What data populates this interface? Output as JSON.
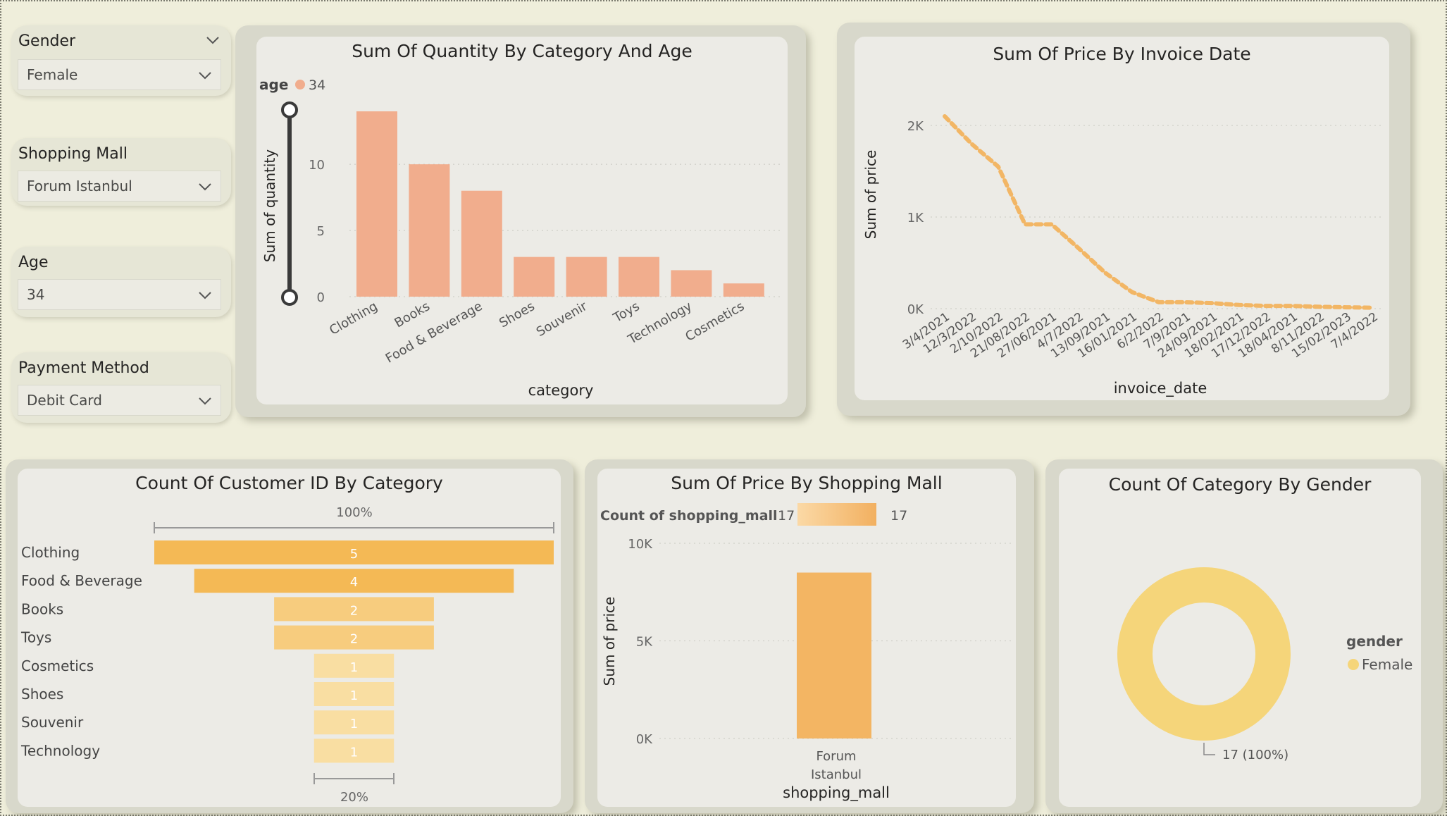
{
  "slicers": [
    {
      "title": "Gender",
      "value": "Female"
    },
    {
      "title": "Shopping Mall",
      "value": "Forum Istanbul"
    },
    {
      "title": "Age",
      "value": "34"
    },
    {
      "title": "Payment Method",
      "value": "Debit Card"
    }
  ],
  "colors": {
    "background": "#efeedb",
    "bar_salmon": "#f1ad8d",
    "line_orange": "#f2b665",
    "funnel_dark": "#f4b955",
    "funnel_mid": "#f7cc7e",
    "funnel_light": "#f9dea2",
    "donut": "#f5d57a"
  },
  "charts": {
    "quantity_by_category": {
      "title": "Sum Of Quantity By Category And Age",
      "legend_title": "age",
      "legend_item": "34",
      "xlabel": "category",
      "ylabel": "Sum of quantity",
      "yticks": [
        "0",
        "5",
        "10"
      ]
    },
    "price_by_date": {
      "title": "Sum Of Price By Invoice Date",
      "xlabel": "invoice_date",
      "ylabel": "Sum of price",
      "yticks": [
        "0K",
        "1K",
        "2K"
      ]
    },
    "customer_by_category": {
      "title": "Count Of Customer ID By Category",
      "top_label": "100%",
      "bottom_label": "20%"
    },
    "price_by_mall": {
      "title": "Sum Of Price By Shopping Mall",
      "legend_title": "Count of shopping_mall",
      "legend_min": "17",
      "legend_max": "17",
      "xlabel": "shopping_mall",
      "ylabel": "Sum of price",
      "yticks": [
        "0K",
        "5K",
        "10K"
      ],
      "category_line1": "Forum",
      "category_line2": "Istanbul"
    },
    "category_by_gender": {
      "title": "Count Of Category By Gender",
      "legend_title": "gender",
      "legend_item": "Female",
      "data_label": "17 (100%)"
    }
  },
  "chart_data": [
    {
      "type": "bar",
      "title": "Sum Of Quantity By Category And Age",
      "xlabel": "category",
      "ylabel": "Sum of quantity",
      "categories": [
        "Clothing",
        "Books",
        "Food & Beverage",
        "Shoes",
        "Souvenir",
        "Toys",
        "Technology",
        "Cosmetics"
      ],
      "series": [
        {
          "name": "34",
          "values": [
            14,
            10,
            8,
            3,
            3,
            3,
            2,
            1
          ]
        }
      ],
      "ylim": [
        0,
        14
      ],
      "legend": "top-left"
    },
    {
      "type": "line",
      "title": "Sum Of Price By Invoice Date",
      "xlabel": "invoice_date",
      "ylabel": "Sum of price",
      "x": [
        "3/4/2021",
        "12/3/2022",
        "2/10/2022",
        "21/08/2022",
        "27/06/2021",
        "4/7/2022",
        "13/09/2021",
        "16/01/2021",
        "6/2/2022",
        "7/9/2021",
        "24/09/2021",
        "18/02/2021",
        "17/12/2022",
        "18/04/2021",
        "8/11/2022",
        "15/02/2023",
        "7/4/2022"
      ],
      "y": [
        2100,
        1800,
        1550,
        920,
        920,
        660,
        390,
        180,
        70,
        70,
        60,
        40,
        30,
        30,
        20,
        15,
        10
      ],
      "ylim": [
        0,
        2100
      ]
    },
    {
      "type": "bar",
      "title": "Count Of Customer ID By Category",
      "categories": [
        "Clothing",
        "Food & Beverage",
        "Books",
        "Toys",
        "Cosmetics",
        "Shoes",
        "Souvenir",
        "Technology"
      ],
      "values": [
        5,
        4,
        2,
        2,
        1,
        1,
        1,
        1
      ]
    },
    {
      "type": "bar",
      "title": "Sum Of Price By Shopping Mall",
      "xlabel": "shopping_mall",
      "ylabel": "Sum of price",
      "categories": [
        "Forum Istanbul"
      ],
      "values": [
        8500
      ],
      "ylim": [
        0,
        10000
      ]
    },
    {
      "type": "pie",
      "title": "Count Of Category By Gender",
      "categories": [
        "Female"
      ],
      "values": [
        17
      ]
    }
  ]
}
